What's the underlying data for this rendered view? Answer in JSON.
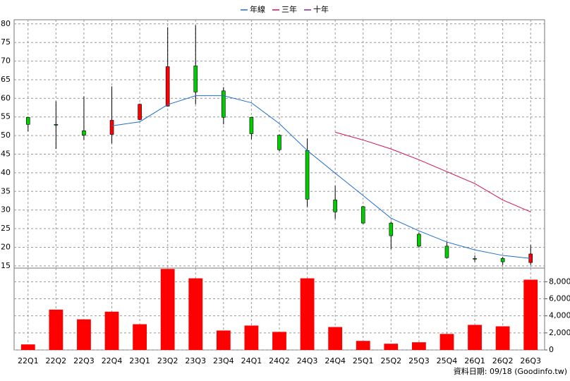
{
  "chart_data": {
    "type": "candlestick",
    "categories": [
      "22Q1",
      "22Q2",
      "22Q3",
      "22Q4",
      "23Q1",
      "23Q2",
      "23Q3",
      "23Q4",
      "24Q1",
      "24Q2",
      "24Q3",
      "24Q4",
      "25Q1",
      "25Q2",
      "25Q3",
      "25Q4",
      "26Q1",
      "26Q2",
      "26Q3"
    ],
    "ohlc": {
      "open": [
        54.9,
        53.0,
        51.3,
        50.3,
        54.3,
        57.9,
        68.7,
        62.0,
        54.9,
        50.1,
        46.0,
        32.7,
        30.9,
        26.5,
        23.5,
        20.3,
        17.0,
        17.0,
        15.9
      ],
      "high": [
        54.9,
        59.2,
        60.5,
        63.2,
        58.6,
        79.1,
        79.6,
        63.0,
        55.0,
        50.3,
        49.2,
        36.5,
        31.1,
        26.9,
        23.9,
        21.4,
        17.8,
        17.4,
        20.6
      ],
      "low": [
        51.1,
        46.4,
        48.8,
        47.9,
        54.1,
        57.8,
        58.4,
        53.0,
        49.0,
        45.8,
        30.9,
        27.6,
        26.3,
        19.5,
        19.9,
        17.0,
        16.1,
        15.2,
        15.2
      ],
      "close": [
        53.0,
        52.8,
        50.1,
        54.1,
        58.4,
        68.5,
        61.7,
        54.9,
        50.5,
        46.2,
        32.9,
        29.5,
        26.5,
        23.1,
        20.3,
        17.2,
        16.9,
        16.1,
        18.2
      ],
      "up_color": "#ff0000",
      "down_color": "#00cc00"
    },
    "series": [
      {
        "name": "年線",
        "color": "#1f6fd0",
        "values": [
          null,
          null,
          null,
          52.6,
          53.7,
          58.3,
          60.7,
          60.7,
          58.8,
          53.2,
          46.0,
          39.9,
          33.9,
          27.8,
          24.4,
          21.4,
          19.3,
          17.8,
          17.0
        ]
      },
      {
        "name": "三年",
        "color": "#d0105a",
        "values": [
          null,
          null,
          null,
          null,
          null,
          null,
          null,
          null,
          null,
          null,
          null,
          50.9,
          48.8,
          46.4,
          43.5,
          40.3,
          37.1,
          32.7,
          29.5
        ]
      },
      {
        "name": "十年",
        "color": "#9020a0",
        "values": [
          null,
          null,
          null,
          null,
          null,
          null,
          null,
          null,
          null,
          null,
          null,
          null,
          null,
          null,
          null,
          null,
          null,
          null,
          null
        ]
      }
    ],
    "volume": {
      "color": "#ff0000",
      "axis": "y2",
      "values": [
        650,
        4730,
        3590,
        4490,
        3020,
        9500,
        8400,
        2280,
        2860,
        2120,
        8400,
        2690,
        1060,
        730,
        900,
        1880,
        2940,
        2770,
        8240
      ]
    },
    "ylim": [
      14.4,
      81.1
    ],
    "yticks": [
      15,
      20,
      25,
      30,
      35,
      40,
      45,
      50,
      55,
      60,
      65,
      70,
      75,
      80
    ],
    "y2lim": [
      0,
      9600
    ],
    "y2ticks": [
      0,
      {
        "value": 2000,
        "label": "2,000"
      },
      {
        "value": 4000,
        "label": "4,000"
      },
      {
        "value": 6000,
        "label": "6,000"
      },
      {
        "value": 8000,
        "label": "8,000"
      }
    ],
    "grid": true,
    "source": "資料日期: 09/18 (Goodinfo.tw)"
  }
}
